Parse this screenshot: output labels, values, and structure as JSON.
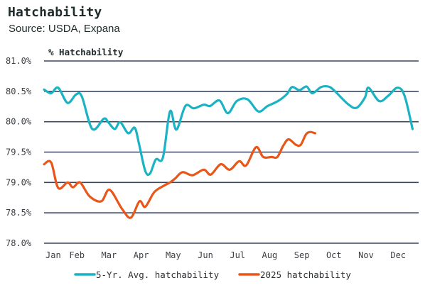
{
  "title": "Hatchability",
  "subtitle": "Source: USDA, Expana",
  "chart_data": {
    "type": "line",
    "title": "Hatchability",
    "subtitle": "Source: USDA, Expana",
    "ylabel": "% Hatchability",
    "xlabel": "",
    "ylim": [
      78.0,
      81.0
    ],
    "y_ticks": [
      "81.0%",
      "80.5%",
      "80.0%",
      "79.5%",
      "79.0%",
      "78.5%",
      "78.0%"
    ],
    "y_tick_values": [
      81.0,
      80.5,
      80.0,
      79.5,
      79.0,
      78.5,
      78.0
    ],
    "x_ticks": [
      "Jan",
      "Feb",
      "Mar",
      "Apr",
      "May",
      "Jun",
      "Jul",
      "Aug",
      "Sep",
      "Oct",
      "Nov",
      "Dec"
    ],
    "xlim_months": [
      0,
      11.7
    ],
    "grid": "horizontal",
    "legend_position": "bottom",
    "series": [
      {
        "name": "5-Yr. Avg. hatchability",
        "color": "#1ab3c3",
        "x": [
          0.0,
          0.22,
          0.44,
          0.73,
          1.0,
          1.18,
          1.5,
          1.86,
          2.0,
          2.2,
          2.37,
          2.62,
          2.82,
          2.95,
          3.15,
          3.3,
          3.48,
          3.7,
          3.92,
          4.12,
          4.4,
          4.66,
          4.97,
          5.17,
          5.46,
          5.72,
          6.0,
          6.33,
          6.67,
          6.96,
          7.28,
          7.55,
          7.72,
          7.95,
          8.17,
          8.35,
          8.62,
          8.84,
          9.02,
          9.46,
          9.73,
          9.99,
          10.1,
          10.43,
          10.72,
          11.0,
          11.22,
          11.47
        ],
        "values": [
          80.53,
          80.47,
          80.56,
          80.31,
          80.45,
          80.41,
          79.88,
          80.05,
          79.99,
          79.88,
          79.99,
          79.81,
          79.9,
          79.65,
          79.19,
          79.15,
          79.38,
          79.41,
          80.17,
          79.87,
          80.26,
          80.22,
          80.28,
          80.26,
          80.35,
          80.14,
          80.34,
          80.37,
          80.17,
          80.26,
          80.34,
          80.45,
          80.57,
          80.52,
          80.58,
          80.47,
          80.57,
          80.58,
          80.52,
          80.29,
          80.23,
          80.4,
          80.56,
          80.34,
          80.43,
          80.56,
          80.43,
          79.88
        ]
      },
      {
        "name": "2025 hatchability",
        "color": "#e8561a",
        "x": [
          0.0,
          0.22,
          0.44,
          0.73,
          0.9,
          1.12,
          1.42,
          1.78,
          2.04,
          2.42,
          2.7,
          2.97,
          3.15,
          3.43,
          3.74,
          3.92,
          4.09,
          4.31,
          4.62,
          4.97,
          5.19,
          5.5,
          5.78,
          6.07,
          6.29,
          6.6,
          6.82,
          7.08,
          7.26,
          7.44,
          7.61,
          7.84,
          7.99,
          8.15,
          8.28,
          8.44
        ],
        "values": [
          79.3,
          79.33,
          78.91,
          79.0,
          78.92,
          79.0,
          78.77,
          78.69,
          78.88,
          78.57,
          78.42,
          78.69,
          78.6,
          78.84,
          78.95,
          79.0,
          79.07,
          79.17,
          79.12,
          79.21,
          79.13,
          79.3,
          79.21,
          79.35,
          79.28,
          79.58,
          79.42,
          79.42,
          79.42,
          79.6,
          79.71,
          79.62,
          79.62,
          79.79,
          79.83,
          79.81
        ]
      }
    ]
  }
}
